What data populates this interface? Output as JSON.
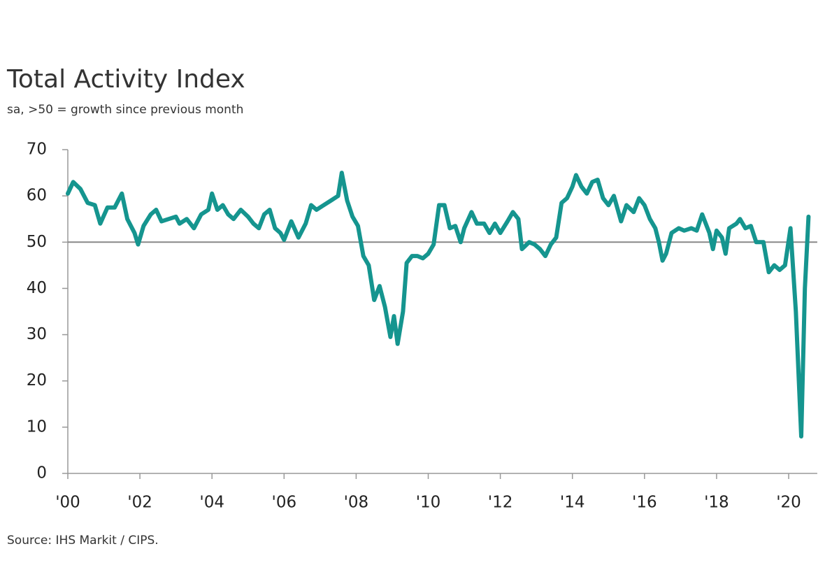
{
  "chart_data": {
    "type": "line",
    "title": "Total Activity Index",
    "subtitle": "sa, >50 = growth since previous month",
    "source": "Source: IHS Markit / CIPS.",
    "ylim": [
      0,
      70
    ],
    "yticks": [
      0,
      10,
      20,
      30,
      40,
      50,
      60,
      70
    ],
    "xlim": [
      2000,
      2020.6
    ],
    "xticks": [
      {
        "value": 2000,
        "label": "'00"
      },
      {
        "value": 2002,
        "label": "'02"
      },
      {
        "value": 2004,
        "label": "'04"
      },
      {
        "value": 2006,
        "label": "'06"
      },
      {
        "value": 2008,
        "label": "'08"
      },
      {
        "value": 2010,
        "label": "'10"
      },
      {
        "value": 2012,
        "label": "'12"
      },
      {
        "value": 2014,
        "label": "'14"
      },
      {
        "value": 2016,
        "label": "'16"
      },
      {
        "value": 2018,
        "label": "'18"
      },
      {
        "value": 2020,
        "label": "'20"
      }
    ],
    "reference_line": 50,
    "color": "#15958f",
    "x": [
      2000.0,
      2000.15,
      2000.35,
      2000.55,
      2000.75,
      2000.9,
      2001.1,
      2001.3,
      2001.5,
      2001.65,
      2001.85,
      2001.95,
      2002.1,
      2002.3,
      2002.45,
      2002.6,
      2002.8,
      2003.0,
      2003.1,
      2003.3,
      2003.5,
      2003.7,
      2003.9,
      2004.0,
      2004.15,
      2004.3,
      2004.45,
      2004.6,
      2004.8,
      2005.0,
      2005.15,
      2005.3,
      2005.45,
      2005.6,
      2005.75,
      2005.9,
      2006.0,
      2006.2,
      2006.4,
      2006.6,
      2006.75,
      2006.9,
      2007.1,
      2007.3,
      2007.5,
      2007.6,
      2007.75,
      2007.9,
      2008.05,
      2008.2,
      2008.35,
      2008.5,
      2008.65,
      2008.8,
      2008.95,
      2009.05,
      2009.15,
      2009.3,
      2009.4,
      2009.55,
      2009.7,
      2009.85,
      2010.0,
      2010.15,
      2010.3,
      2010.45,
      2010.6,
      2010.75,
      2010.9,
      2011.0,
      2011.2,
      2011.35,
      2011.55,
      2011.7,
      2011.85,
      2012.0,
      2012.2,
      2012.35,
      2012.5,
      2012.6,
      2012.8,
      2012.95,
      2013.1,
      2013.25,
      2013.4,
      2013.55,
      2013.7,
      2013.85,
      2014.0,
      2014.1,
      2014.25,
      2014.4,
      2014.55,
      2014.7,
      2014.85,
      2015.0,
      2015.15,
      2015.35,
      2015.5,
      2015.7,
      2015.85,
      2016.0,
      2016.15,
      2016.3,
      2016.4,
      2016.5,
      2016.6,
      2016.75,
      2016.95,
      2017.1,
      2017.3,
      2017.45,
      2017.6,
      2017.8,
      2017.9,
      2018.0,
      2018.15,
      2018.25,
      2018.35,
      2018.55,
      2018.65,
      2018.8,
      2018.95,
      2019.1,
      2019.3,
      2019.45,
      2019.6,
      2019.75,
      2019.9,
      2020.05,
      2020.2,
      2020.35,
      2020.45,
      2020.55
    ],
    "values": [
      60.5,
      63,
      61.5,
      58.5,
      58,
      54,
      57.5,
      57.5,
      60.5,
      55,
      52,
      49.5,
      53.5,
      56,
      57,
      54.5,
      55,
      55.5,
      54,
      55,
      53,
      56,
      57,
      60.5,
      57,
      58,
      56,
      55,
      57,
      55.5,
      54,
      53,
      56,
      57,
      53,
      52,
      50.5,
      54.5,
      51,
      54,
      58,
      57,
      58,
      59,
      60,
      65,
      59,
      55.5,
      53.5,
      47,
      45,
      37.5,
      40.5,
      36,
      29.5,
      34,
      28,
      35,
      45.5,
      47,
      47,
      46.5,
      47.5,
      49.5,
      58,
      58,
      53,
      53.5,
      50,
      53,
      56.5,
      54,
      54,
      52,
      54,
      52,
      54.5,
      56.5,
      55,
      48.5,
      50,
      49.5,
      48.5,
      47,
      49.5,
      51,
      58.5,
      59.5,
      62,
      64.5,
      62,
      60.5,
      63,
      63.5,
      59.5,
      58,
      60,
      54.5,
      58,
      56.5,
      59.5,
      58,
      55,
      53,
      50,
      46,
      47.5,
      52,
      53,
      52.5,
      53,
      52.5,
      56,
      52,
      48.5,
      52.5,
      51,
      47.5,
      53,
      54,
      55,
      53,
      53.5,
      50,
      50,
      43.5,
      45,
      44,
      45,
      53,
      35,
      8,
      40,
      55.5
    ]
  }
}
